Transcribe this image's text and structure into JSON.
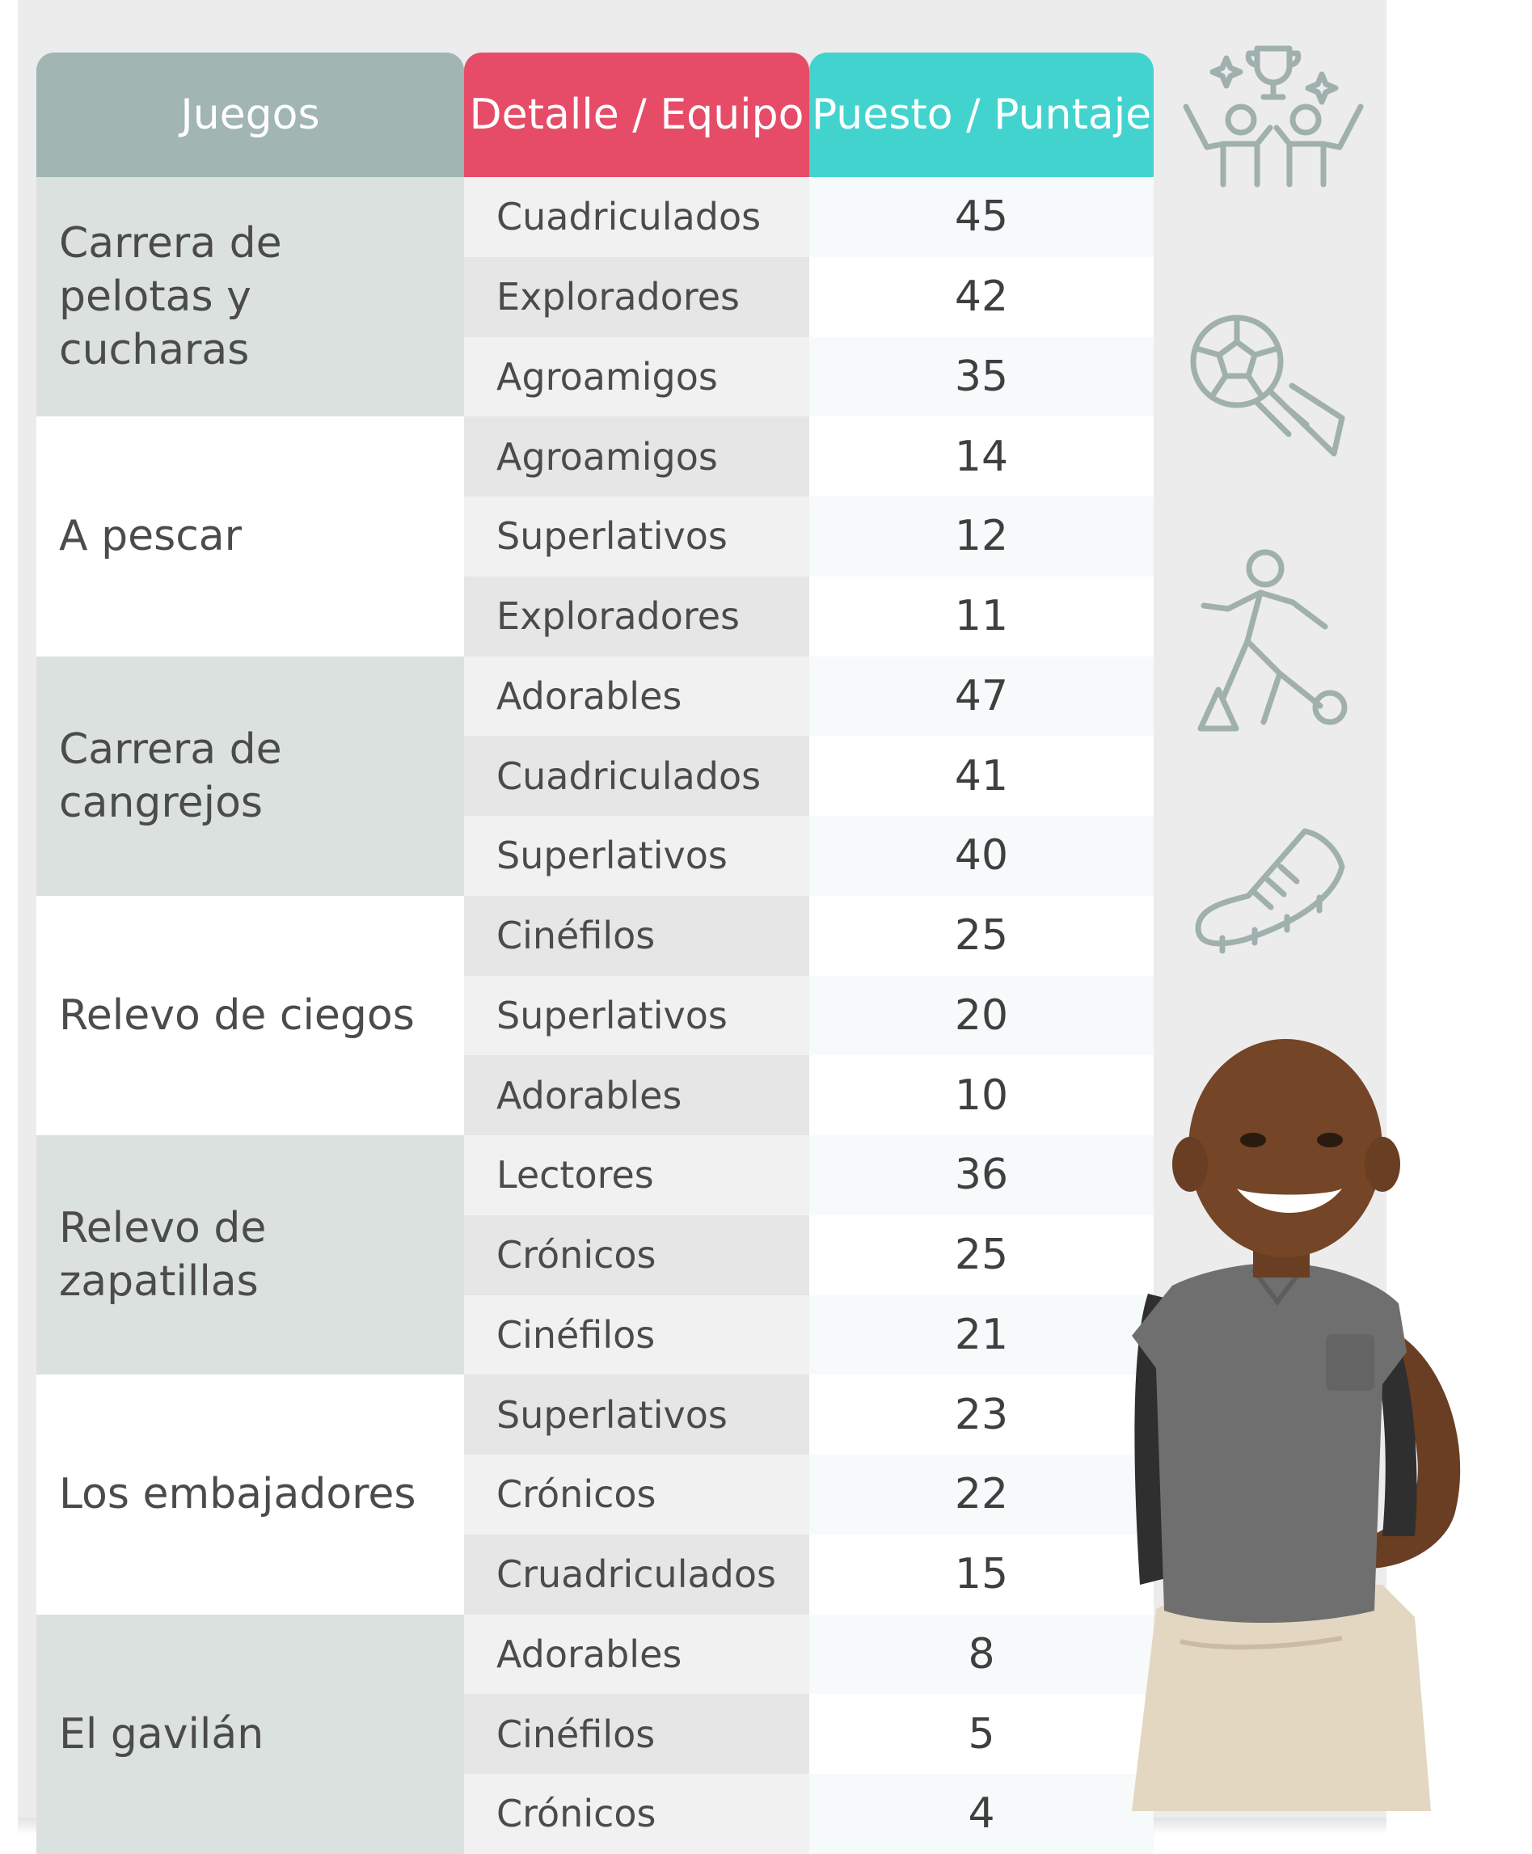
{
  "table": {
    "headers": {
      "juegos": "Juegos",
      "detalle": "Detalle / Equipo",
      "puesto": "Puesto / Puntaje"
    },
    "groups": [
      {
        "game": "Carrera de pelotas y cucharas",
        "rows": [
          {
            "team": "Cuadriculados",
            "score": "45"
          },
          {
            "team": "Exploradores",
            "score": "42"
          },
          {
            "team": "Agroamigos",
            "score": "35"
          }
        ]
      },
      {
        "game": "A pescar",
        "rows": [
          {
            "team": "Agroamigos",
            "score": "14"
          },
          {
            "team": "Superlativos",
            "score": "12"
          },
          {
            "team": "Exploradores",
            "score": "11"
          }
        ]
      },
      {
        "game": "Carrera de cangrejos",
        "rows": [
          {
            "team": "Adorables",
            "score": "47"
          },
          {
            "team": "Cuadriculados",
            "score": "41"
          },
          {
            "team": "Superlativos",
            "score": "40"
          }
        ]
      },
      {
        "game": "Relevo de ciegos",
        "rows": [
          {
            "team": "Cinéfilos",
            "score": "25"
          },
          {
            "team": "Superlativos",
            "score": "20"
          },
          {
            "team": "Adorables",
            "score": "10"
          }
        ]
      },
      {
        "game": "Relevo de zapatillas",
        "rows": [
          {
            "team": "Lectores",
            "score": "36"
          },
          {
            "team": "Crónicos",
            "score": "25"
          },
          {
            "team": "Cinéfilos",
            "score": "21"
          }
        ]
      },
      {
        "game": "Los embajadores",
        "rows": [
          {
            "team": "Superlativos",
            "score": "23"
          },
          {
            "team": "Crónicos",
            "score": "22"
          },
          {
            "team": "Cruadriculados",
            "score": "15"
          }
        ]
      },
      {
        "game": "El gavilán",
        "rows": [
          {
            "team": "Adorables",
            "score": "8"
          },
          {
            "team": "Cinéfilos",
            "score": "5"
          },
          {
            "team": "Crónicos",
            "score": "4"
          }
        ]
      }
    ]
  },
  "icons": [
    "trophy-celebration-icon",
    "soccer-ball-icon",
    "soccer-player-icon",
    "sports-shoe-icon"
  ],
  "colors": {
    "header_juegos": "#a1b5b2",
    "header_detalle": "#e64c68",
    "header_puesto": "#43d3cf",
    "group_shade": "#dbe1df",
    "icon_stroke": "#9fb0ad"
  }
}
